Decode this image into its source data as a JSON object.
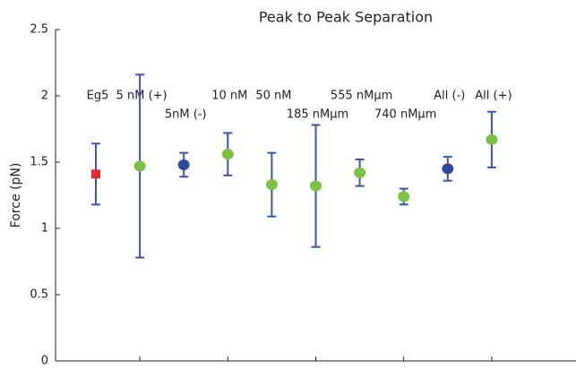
{
  "chart_data": {
    "type": "errorbar",
    "title": "Peak to Peak Separation",
    "y_label": "Force (pN)",
    "categories": [
      "Eg5",
      "5 nM (+)",
      "5nM (-)",
      "10 nM",
      "50 nM",
      "185 nMμm",
      "555 nMμm",
      "740 nMμm",
      "All (-)",
      "All (+)"
    ],
    "values": [
      1.41,
      1.47,
      1.48,
      1.56,
      1.33,
      1.32,
      1.42,
      1.24,
      1.45,
      1.67
    ],
    "errors": [
      0.23,
      0.69,
      0.09,
      0.16,
      0.24,
      0.46,
      0.1,
      0.06,
      0.09,
      0.21
    ],
    "colors": [
      "#e8262b",
      "#7cc242",
      "#2e4aa0",
      "#7cc242",
      "#7cc242",
      "#7cc242",
      "#7cc242",
      "#7cc242",
      "#2e4aa0",
      "#7cc242"
    ],
    "markers": [
      "square",
      "circle",
      "circle",
      "circle",
      "circle",
      "circle",
      "circle",
      "circle",
      "circle",
      "circle"
    ],
    "error_color": "#3d55a5",
    "ylim": [
      0,
      2.5
    ],
    "yticks": [
      0,
      0.5,
      1,
      1.5,
      2,
      2.5
    ]
  }
}
